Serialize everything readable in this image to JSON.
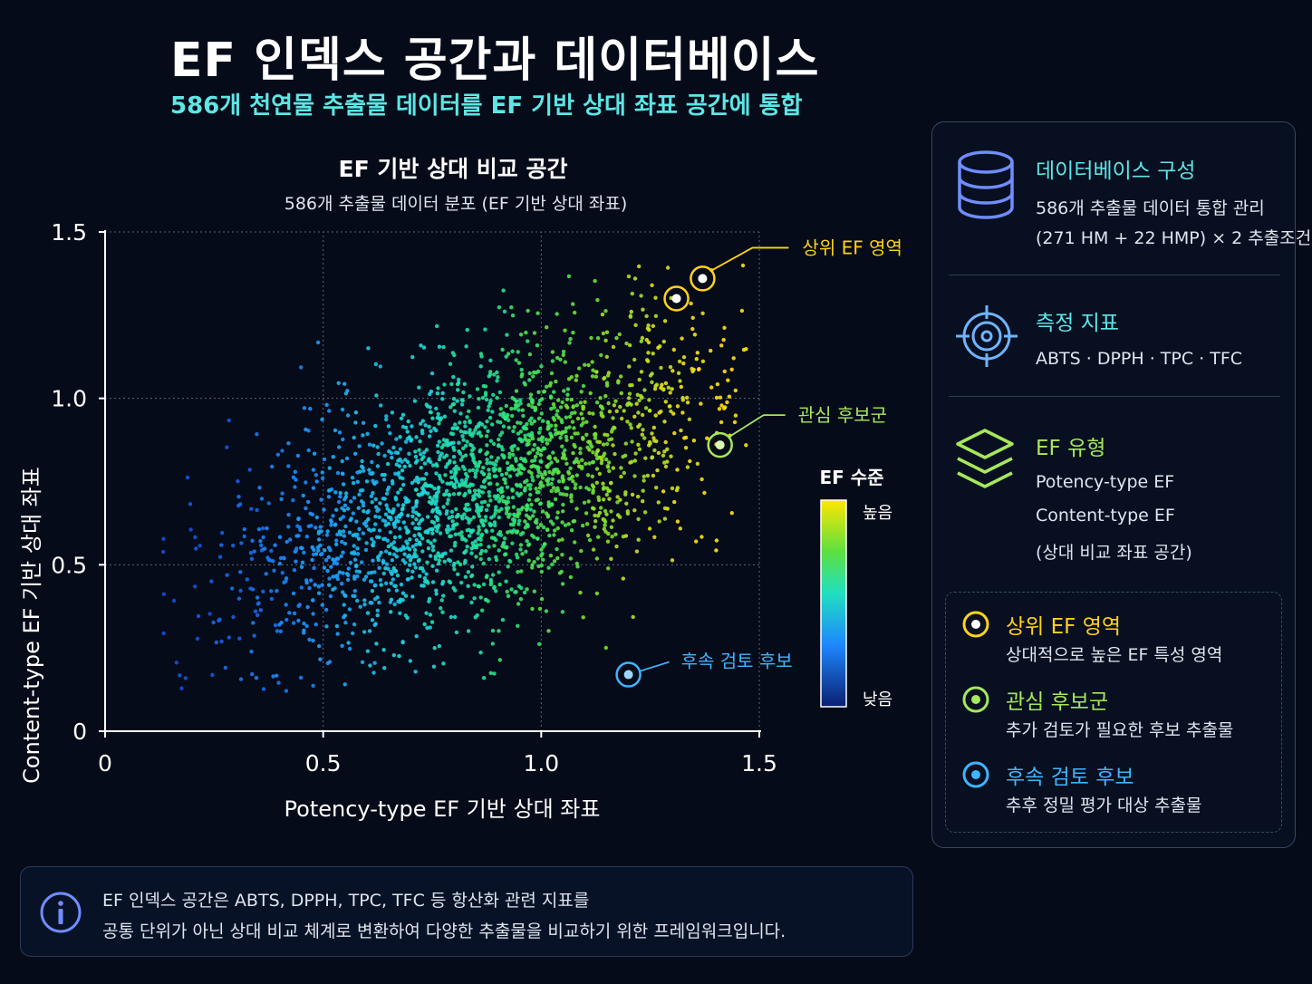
{
  "header": {
    "title": "EF 인덱스 공간과 데이터베이스",
    "subtitle": "586개 천연물 추출물 데이터를 EF 기반 상대 좌표 공간에 통합"
  },
  "chart_data": {
    "type": "scatter",
    "title": "EF 기반 상대 비교 공간",
    "subtitle": "586개 추출물 데이터 분포 (EF 기반 상대 좌표)",
    "xlabel": "Potency-type EF 기반 상대 좌표",
    "ylabel": "Content-type EF 기반 상대 좌표",
    "xlim": [
      0,
      1.5
    ],
    "ylim": [
      0,
      1.5
    ],
    "xticks": [
      "0",
      "0.5",
      "1.0",
      "1.5"
    ],
    "yticks": [
      "0",
      "0.5",
      "1.0",
      "1.5"
    ],
    "grid": true,
    "colorbar": {
      "title": "EF 수준",
      "high_label": "높음",
      "low_label": "낮음"
    },
    "colors": {
      "low": "#0a2a8a",
      "mid_low": "#1e90ff",
      "mid": "#20e0c0",
      "mid_high": "#40e040",
      "high": "#ffe600"
    },
    "highlights": [
      {
        "label": "상위 EF 영역",
        "color": "#ffd21a",
        "points": [
          {
            "x": 1.31,
            "y": 1.3
          },
          {
            "x": 1.37,
            "y": 1.36
          }
        ]
      },
      {
        "label": "관심 후보군",
        "color": "#a6e85a",
        "points": [
          {
            "x": 1.41,
            "y": 0.86
          }
        ]
      },
      {
        "label": "후속 검토 후보",
        "color": "#3fb4ff",
        "points": [
          {
            "x": 1.2,
            "y": 0.17
          }
        ]
      }
    ],
    "cloud": {
      "count": 2400,
      "x_center": 0.85,
      "y_center": 0.72,
      "correlation": 0.5,
      "note_approximate": true
    }
  },
  "panel": {
    "db": {
      "title": "데이터베이스 구성",
      "line1": "586개 추출물 데이터 통합 관리",
      "line2": "(271 HM + 22 HMP) × 2 추출조건"
    },
    "metrics": {
      "title": "측정 지표",
      "line1": "ABTS · DPPH · TPC · TFC"
    },
    "types": {
      "title": "EF 유형",
      "line1": "Potency-type EF",
      "line2": "Content-type EF",
      "line3": "(상대 비교 좌표 공간)"
    },
    "legend": [
      {
        "title": "상위 EF 영역",
        "desc": "상대적으로 높은 EF 특성 영역",
        "color": "#ffd21a"
      },
      {
        "title": "관심 후보군",
        "desc": "추가 검토가 필요한 후보 추출물",
        "color": "#a6e85a"
      },
      {
        "title": "후속 검토 후보",
        "desc": "추후 정밀 평가 대상 추출물",
        "color": "#3fb4ff"
      }
    ],
    "accent": "#5ee6e6"
  },
  "info": {
    "line1": "EF 인덱스 공간은 ABTS, DPPH, TPC, TFC 등 항산화 관련 지표를",
    "line2": "공통 단위가 아닌 상대 비교 체계로 변환하여 다양한 추출물을 비교하기 위한  프레임워크입니다."
  }
}
